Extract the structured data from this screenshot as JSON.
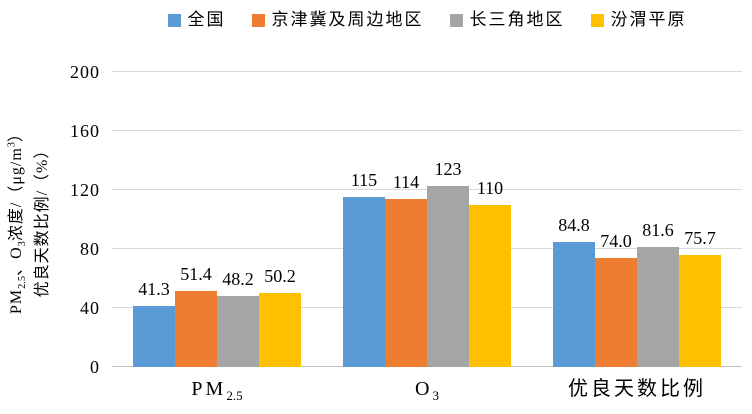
{
  "chart_data": {
    "type": "bar",
    "title": "",
    "legend_position": "top",
    "grid": true,
    "ylim": [
      0,
      200
    ],
    "yticks": [
      0,
      40,
      80,
      120,
      160,
      200
    ],
    "ylabel_text": "PM2.5、O3浓度/（μg/m³） 优良天数比例/（%）",
    "ylabel_lines": [
      [
        {
          "t": "PM"
        },
        {
          "t": "2.5",
          "s": "sub"
        },
        {
          "t": "、O"
        },
        {
          "t": "3",
          "s": "sub"
        },
        {
          "t": "浓度/（μg/m"
        },
        {
          "t": "3",
          "s": "sup"
        },
        {
          "t": "）"
        }
      ],
      [
        {
          "t": "优良天数比例/（%）"
        }
      ]
    ],
    "categories": [
      "PM2.5",
      "O3",
      "优良天数比例"
    ],
    "category_labels": [
      [
        {
          "t": "PM"
        },
        {
          "t": "2.5",
          "s": "sub"
        }
      ],
      [
        {
          "t": "O"
        },
        {
          "t": "3",
          "s": "sub"
        }
      ],
      [
        {
          "t": "优良天数比例"
        }
      ]
    ],
    "series": [
      {
        "name": "全国",
        "color": "#5B9BD5",
        "values": [
          41.3,
          115,
          84.8
        ],
        "labels": [
          "41.3",
          "115",
          "84.8"
        ]
      },
      {
        "name": "京津冀及周边地区",
        "color": "#ED7D31",
        "values": [
          51.4,
          114,
          74.0
        ],
        "labels": [
          "51.4",
          "114",
          "74.0"
        ]
      },
      {
        "name": "长三角地区",
        "color": "#A5A5A5",
        "values": [
          48.2,
          123,
          81.6
        ],
        "labels": [
          "48.2",
          "123",
          "81.6"
        ]
      },
      {
        "name": "汾渭平原",
        "color": "#FFC000",
        "values": [
          50.2,
          110,
          75.7
        ],
        "labels": [
          "50.2",
          "110",
          "75.7"
        ]
      }
    ],
    "colors": {
      "gridline": "#D9D9D9",
      "axis_line": "#BFBFBF",
      "text": "#000000",
      "background": "#FFFFFF"
    }
  }
}
